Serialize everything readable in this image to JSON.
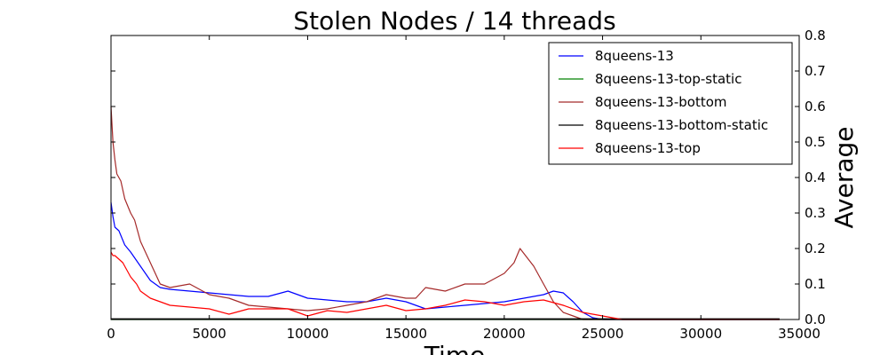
{
  "chart_data": {
    "type": "line",
    "title": "Stolen Nodes / 14 threads",
    "xlabel": "Time",
    "ylabel": "Average",
    "xlim": [
      0,
      35000
    ],
    "ylim": [
      0,
      0.8
    ],
    "xticks": [
      0,
      5000,
      10000,
      15000,
      20000,
      25000,
      30000,
      35000
    ],
    "yticks": [
      0.0,
      0.1,
      0.2,
      0.3,
      0.4,
      0.5,
      0.6,
      0.7,
      0.8
    ],
    "ytick_labels": [
      "0.0",
      "0.1",
      "0.2",
      "0.3",
      "0.4",
      "0.5",
      "0.6",
      "0.7",
      "0.8"
    ],
    "y_axis_side": "right",
    "grid": false,
    "legend_position": "top-right",
    "series": [
      {
        "name": "8queens-13",
        "color": "#0000ff",
        "x": [
          0,
          100,
          200,
          400,
          700,
          1000,
          1500,
          2000,
          2500,
          3000,
          4000,
          5000,
          6000,
          7000,
          8000,
          9000,
          10000,
          11000,
          12000,
          13000,
          14000,
          15000,
          16000,
          17000,
          18000,
          19000,
          20000,
          21000,
          22000,
          22500,
          23000,
          23500,
          24000,
          24500,
          25000,
          30000,
          34000
        ],
        "y": [
          0.33,
          0.29,
          0.26,
          0.25,
          0.21,
          0.19,
          0.15,
          0.11,
          0.09,
          0.085,
          0.08,
          0.075,
          0.07,
          0.065,
          0.065,
          0.08,
          0.06,
          0.055,
          0.05,
          0.05,
          0.06,
          0.05,
          0.03,
          0.035,
          0.04,
          0.045,
          0.05,
          0.06,
          0.07,
          0.08,
          0.075,
          0.05,
          0.02,
          0.005,
          0.0,
          0.0,
          0.0
        ]
      },
      {
        "name": "8queens-13-top-static",
        "color": "#008000",
        "x": [
          0,
          34000
        ],
        "y": [
          0.0,
          0.0
        ]
      },
      {
        "name": "8queens-13-bottom",
        "color": "#a52a2a",
        "x": [
          0,
          50,
          100,
          200,
          300,
          500,
          700,
          1000,
          1200,
          1500,
          2000,
          2500,
          3000,
          3500,
          4000,
          5000,
          6000,
          7000,
          8000,
          9000,
          10000,
          11000,
          12000,
          13000,
          14000,
          15000,
          15500,
          16000,
          17000,
          18000,
          19000,
          20000,
          20500,
          20800,
          21500,
          22000,
          22500,
          23000,
          23500,
          24000,
          34000
        ],
        "y": [
          0.6,
          0.55,
          0.5,
          0.45,
          0.41,
          0.39,
          0.34,
          0.3,
          0.28,
          0.22,
          0.16,
          0.1,
          0.09,
          0.095,
          0.1,
          0.07,
          0.06,
          0.04,
          0.035,
          0.03,
          0.025,
          0.03,
          0.04,
          0.05,
          0.07,
          0.06,
          0.06,
          0.09,
          0.08,
          0.1,
          0.1,
          0.13,
          0.16,
          0.2,
          0.15,
          0.1,
          0.05,
          0.02,
          0.01,
          0.0,
          0.0
        ]
      },
      {
        "name": "8queens-13-bottom-static",
        "color": "#000000",
        "x": [
          0,
          34000
        ],
        "y": [
          0.002,
          0.002
        ]
      },
      {
        "name": "8queens-13-top",
        "color": "#ff0000",
        "x": [
          0,
          100,
          200,
          400,
          600,
          800,
          1000,
          1300,
          1500,
          2000,
          2500,
          3000,
          4000,
          5000,
          6000,
          7000,
          8000,
          9000,
          10000,
          11000,
          12000,
          13000,
          14000,
          15000,
          16000,
          17000,
          18000,
          19000,
          20000,
          21000,
          22000,
          23000,
          24000,
          25000,
          26000,
          34000
        ],
        "y": [
          0.19,
          0.18,
          0.18,
          0.17,
          0.16,
          0.14,
          0.12,
          0.1,
          0.08,
          0.06,
          0.05,
          0.04,
          0.035,
          0.03,
          0.015,
          0.03,
          0.03,
          0.03,
          0.01,
          0.025,
          0.02,
          0.03,
          0.04,
          0.025,
          0.03,
          0.04,
          0.055,
          0.05,
          0.04,
          0.05,
          0.055,
          0.04,
          0.02,
          0.01,
          0.0,
          0.0
        ]
      }
    ]
  }
}
